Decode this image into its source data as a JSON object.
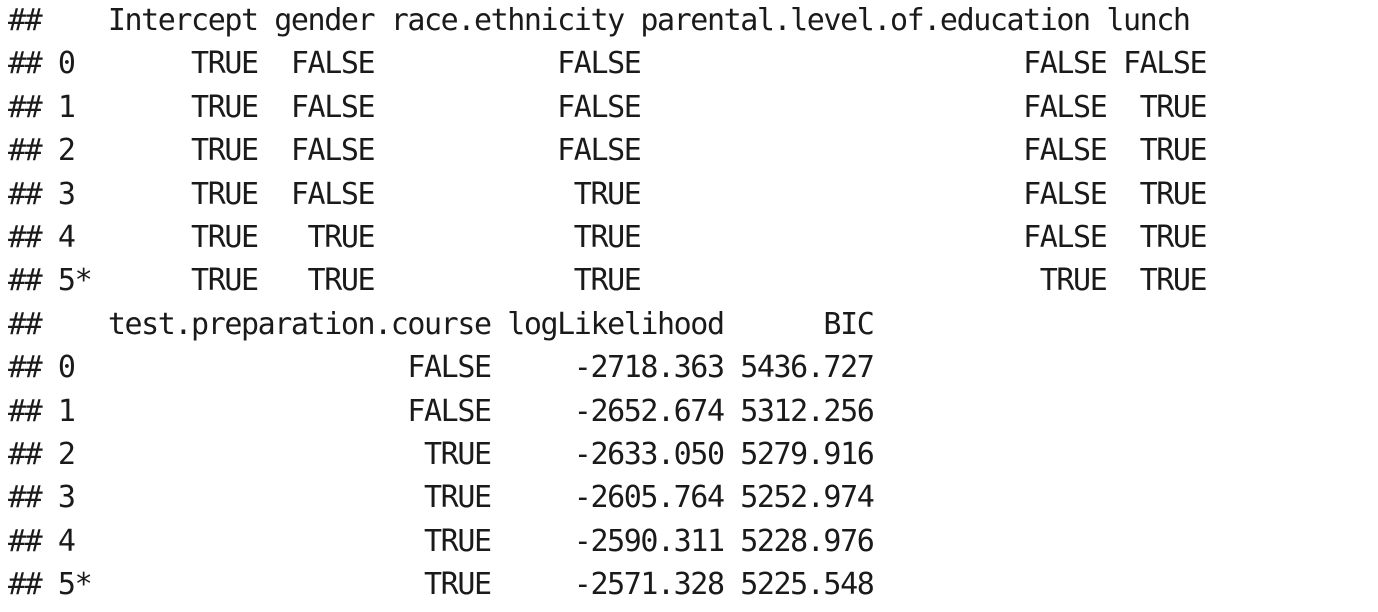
{
  "output": {
    "lines": [
      "##    Intercept gender race.ethnicity parental.level.of.education lunch",
      "## 0       TRUE  FALSE           FALSE                       FALSE FALSE",
      "## 1       TRUE  FALSE           FALSE                       FALSE  TRUE",
      "## 2       TRUE  FALSE           FALSE                       FALSE  TRUE",
      "## 3       TRUE  FALSE            TRUE                       FALSE  TRUE",
      "## 4       TRUE   TRUE            TRUE                       FALSE  TRUE",
      "## 5*      TRUE   TRUE            TRUE                        TRUE  TRUE",
      "##    test.preparation.course logLikelihood      BIC",
      "## 0                    FALSE     -2718.363 5436.727",
      "## 1                    FALSE     -2652.674 5312.256",
      "## 2                     TRUE     -2633.050 5279.916",
      "## 3                     TRUE     -2605.764 5252.974",
      "## 4                     TRUE     -2590.311 5228.976",
      "## 5*                    TRUE     -2571.328 5225.548"
    ]
  }
}
